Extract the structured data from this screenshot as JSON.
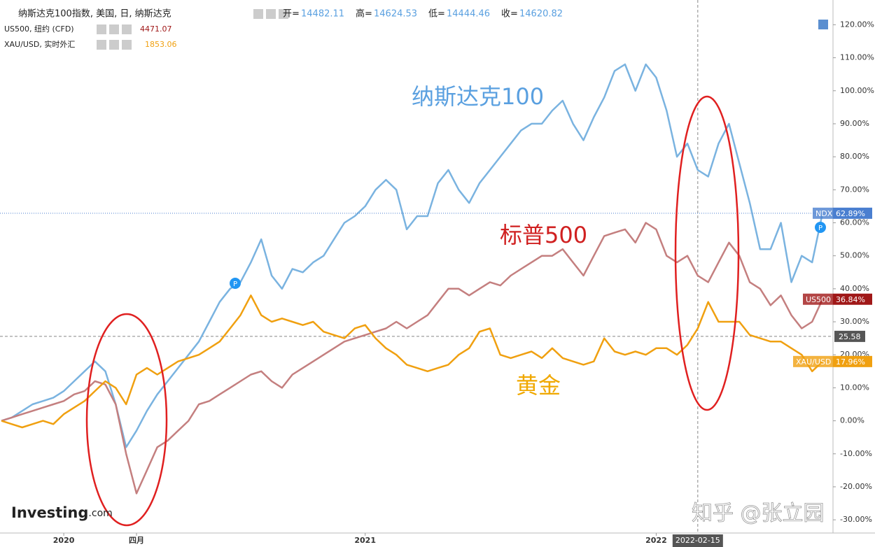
{
  "chart_data": {
    "type": "line",
    "categories": [
      null,
      null,
      null,
      null,
      null,
      null,
      "2020",
      null,
      null,
      null,
      null,
      null,
      null,
      "四月",
      null,
      null,
      null,
      null,
      null,
      null,
      null,
      null,
      null,
      null,
      null,
      null,
      null,
      null,
      null,
      null,
      null,
      null,
      null,
      null,
      null,
      "2021",
      null,
      null,
      null,
      null,
      null,
      null,
      null,
      null,
      null,
      null,
      null,
      null,
      null,
      null,
      null,
      null,
      null,
      null,
      null,
      null,
      null,
      null,
      null,
      null,
      null,
      null,
      null,
      "2022",
      null,
      null,
      null,
      "2022-02-15",
      null,
      null,
      null,
      null,
      null,
      null,
      null,
      null,
      null,
      null,
      null,
      null
    ],
    "series": [
      {
        "name": "纳斯达克100指数, 美国, 日, 纳斯达克",
        "tag": "NDX",
        "color": "#7ab3e0",
        "tag_color": "#4a7fd0",
        "ohlc": [
          {
            "label": "开=",
            "value": 14482.11
          },
          {
            "label": "高=",
            "value": 14624.53
          },
          {
            "label": "低=",
            "value": 14444.46
          },
          {
            "label": "收=",
            "value": 14620.82
          }
        ],
        "last_label": "62.89%",
        "values": [
          0,
          1,
          3,
          5,
          6,
          7,
          9,
          12,
          15,
          18,
          15,
          5,
          -8,
          -3,
          3,
          8,
          12,
          16,
          20,
          24,
          30,
          36,
          40,
          42,
          48,
          55,
          44,
          40,
          46,
          45,
          48,
          50,
          55,
          60,
          62,
          65,
          70,
          73,
          70,
          58,
          62,
          62,
          72,
          76,
          70,
          66,
          72,
          76,
          80,
          84,
          88,
          90,
          90,
          94,
          97,
          90,
          85,
          92,
          98,
          106,
          108,
          100,
          108,
          104,
          94,
          80,
          84,
          76,
          74,
          84,
          90,
          78,
          66,
          52,
          52,
          60,
          42,
          50,
          48,
          62.89
        ]
      },
      {
        "name": "US500, 纽约 (CFD)",
        "tag": "US500",
        "price": 4471.07,
        "color": "#c47f7f",
        "tag_color": "#a01818",
        "last_label": "36.84%",
        "values": [
          0,
          1,
          2,
          3,
          4,
          5,
          6,
          8,
          9,
          12,
          11,
          5,
          -10,
          -22,
          -15,
          -8,
          -6,
          -3,
          0,
          5,
          6,
          8,
          10,
          12,
          14,
          15,
          12,
          10,
          14,
          16,
          18,
          20,
          22,
          24,
          25,
          26,
          27,
          28,
          30,
          28,
          30,
          32,
          36,
          40,
          40,
          38,
          40,
          42,
          41,
          44,
          46,
          48,
          50,
          50,
          52,
          48,
          44,
          50,
          56,
          57,
          58,
          54,
          60,
          58,
          50,
          48,
          50,
          44,
          42,
          48,
          54,
          50,
          42,
          40,
          35,
          38,
          32,
          28,
          30,
          36.84
        ]
      },
      {
        "name": "XAU/USD, 实时外汇",
        "tag": "XAU/USD",
        "price": 1853.06,
        "color": "#f0a010",
        "tag_color": "#f0a010",
        "last_label": "17.96%",
        "values": [
          0,
          -1,
          -2,
          -1,
          0,
          -1,
          2,
          4,
          6,
          9,
          12,
          10,
          5,
          14,
          16,
          14,
          16,
          18,
          19,
          20,
          22,
          24,
          28,
          32,
          38,
          32,
          30,
          31,
          30,
          29,
          30,
          27,
          26,
          25,
          28,
          29,
          25,
          22,
          20,
          17,
          16,
          15,
          16,
          17,
          20,
          22,
          27,
          28,
          20,
          19,
          20,
          21,
          19,
          22,
          19,
          18,
          17,
          18,
          25,
          21,
          20,
          21,
          20,
          22,
          22,
          20,
          23,
          28,
          36,
          30,
          30,
          30,
          26,
          25,
          24,
          24,
          22,
          20,
          15,
          17.96
        ]
      }
    ],
    "annotations": [
      {
        "text": "纳斯达克100",
        "color": "#5aa0e0"
      },
      {
        "text": "标普500",
        "color": "#d02020"
      },
      {
        "text": "黄金",
        "color": "#f0a800"
      }
    ],
    "crosshair": {
      "x": "2022-02-15",
      "y": 25.58
    },
    "ylim": [
      -34,
      127.5
    ],
    "yticks": [
      {
        "value": -30,
        "label": "-30.00%"
      },
      {
        "value": -20,
        "label": "-20.00%"
      },
      {
        "value": -10,
        "label": "-10.00%"
      },
      {
        "value": 0,
        "label": "0.00%"
      },
      {
        "value": 10,
        "label": "10.00%"
      },
      {
        "value": 20,
        "label": "20.00%"
      },
      {
        "value": 30,
        "label": "30.00%"
      },
      {
        "value": 40,
        "label": "40.00%"
      },
      {
        "value": 50,
        "label": "50.00%"
      },
      {
        "value": 60,
        "label": "60.00%"
      },
      {
        "value": 70,
        "label": "70.00%"
      },
      {
        "value": 80,
        "label": "80.00%"
      },
      {
        "value": 90,
        "label": "90.00%"
      },
      {
        "value": 100,
        "label": "100.00%"
      },
      {
        "value": 110,
        "label": "110.00%"
      },
      {
        "value": 120,
        "label": "120.00%"
      }
    ],
    "logo": "Investing",
    "logo_suffix": ".com",
    "watermark": "知乎 @张立园"
  }
}
